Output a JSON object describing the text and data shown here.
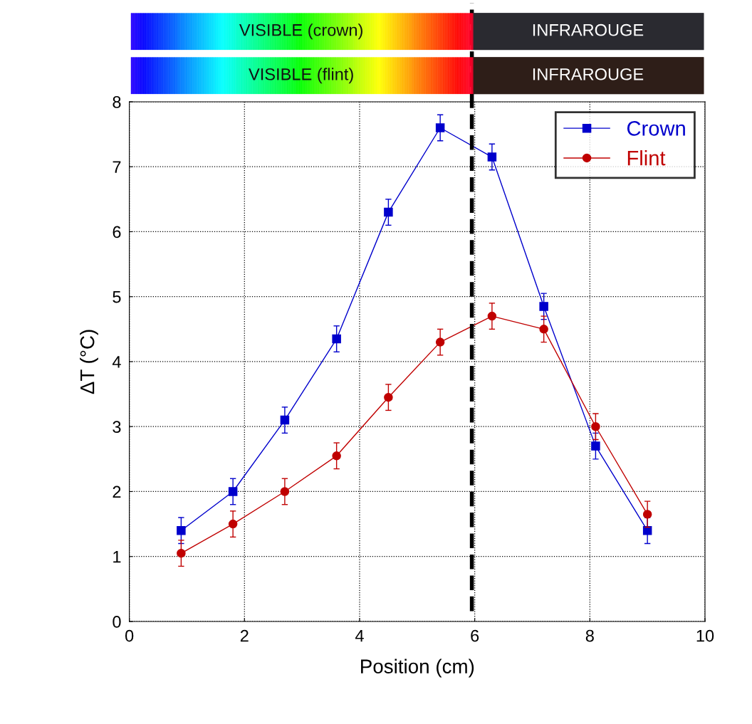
{
  "chart_data": {
    "type": "line",
    "xlabel": "Position (cm)",
    "ylabel": "ΔT (°C)",
    "xlim": [
      0,
      10
    ],
    "xticks": [
      0,
      2,
      4,
      6,
      8,
      10
    ],
    "ylim": [
      0,
      8
    ],
    "yticks": [
      0,
      1,
      2,
      3,
      4,
      5,
      6,
      7,
      8
    ],
    "grid": true,
    "legend": "top right",
    "line_style": "solid",
    "x": [
      0.9,
      1.8,
      2.7,
      3.6,
      4.5,
      5.4,
      6.3,
      7.2,
      8.1,
      9.0
    ],
    "series": [
      {
        "name": "Crown",
        "color": "#0000cc",
        "marker": "square",
        "values": [
          1.4,
          2.0,
          3.1,
          4.35,
          6.3,
          7.6,
          7.15,
          4.85,
          2.7,
          1.4
        ],
        "errors": [
          0.2,
          0.2,
          0.2,
          0.2,
          0.2,
          0.2,
          0.2,
          0.2,
          0.2,
          0.2
        ]
      },
      {
        "name": "Flint",
        "color": "#c00000",
        "marker": "circle",
        "values": [
          1.05,
          1.5,
          2.0,
          2.55,
          3.45,
          4.3,
          4.7,
          4.5,
          3.0,
          1.65
        ],
        "errors": [
          0.2,
          0.2,
          0.2,
          0.2,
          0.2,
          0.2,
          0.2,
          0.2,
          0.2,
          0.2
        ]
      }
    ],
    "ref_lines": [
      {
        "axis": "x",
        "value": 5.95,
        "color": "#000000",
        "line_style": "dashed"
      }
    ],
    "annotations": [
      "VISIBLE (crown)",
      "INFRAROUGE",
      "VISIBLE (flint)",
      "INFRAROUGE"
    ]
  }
}
